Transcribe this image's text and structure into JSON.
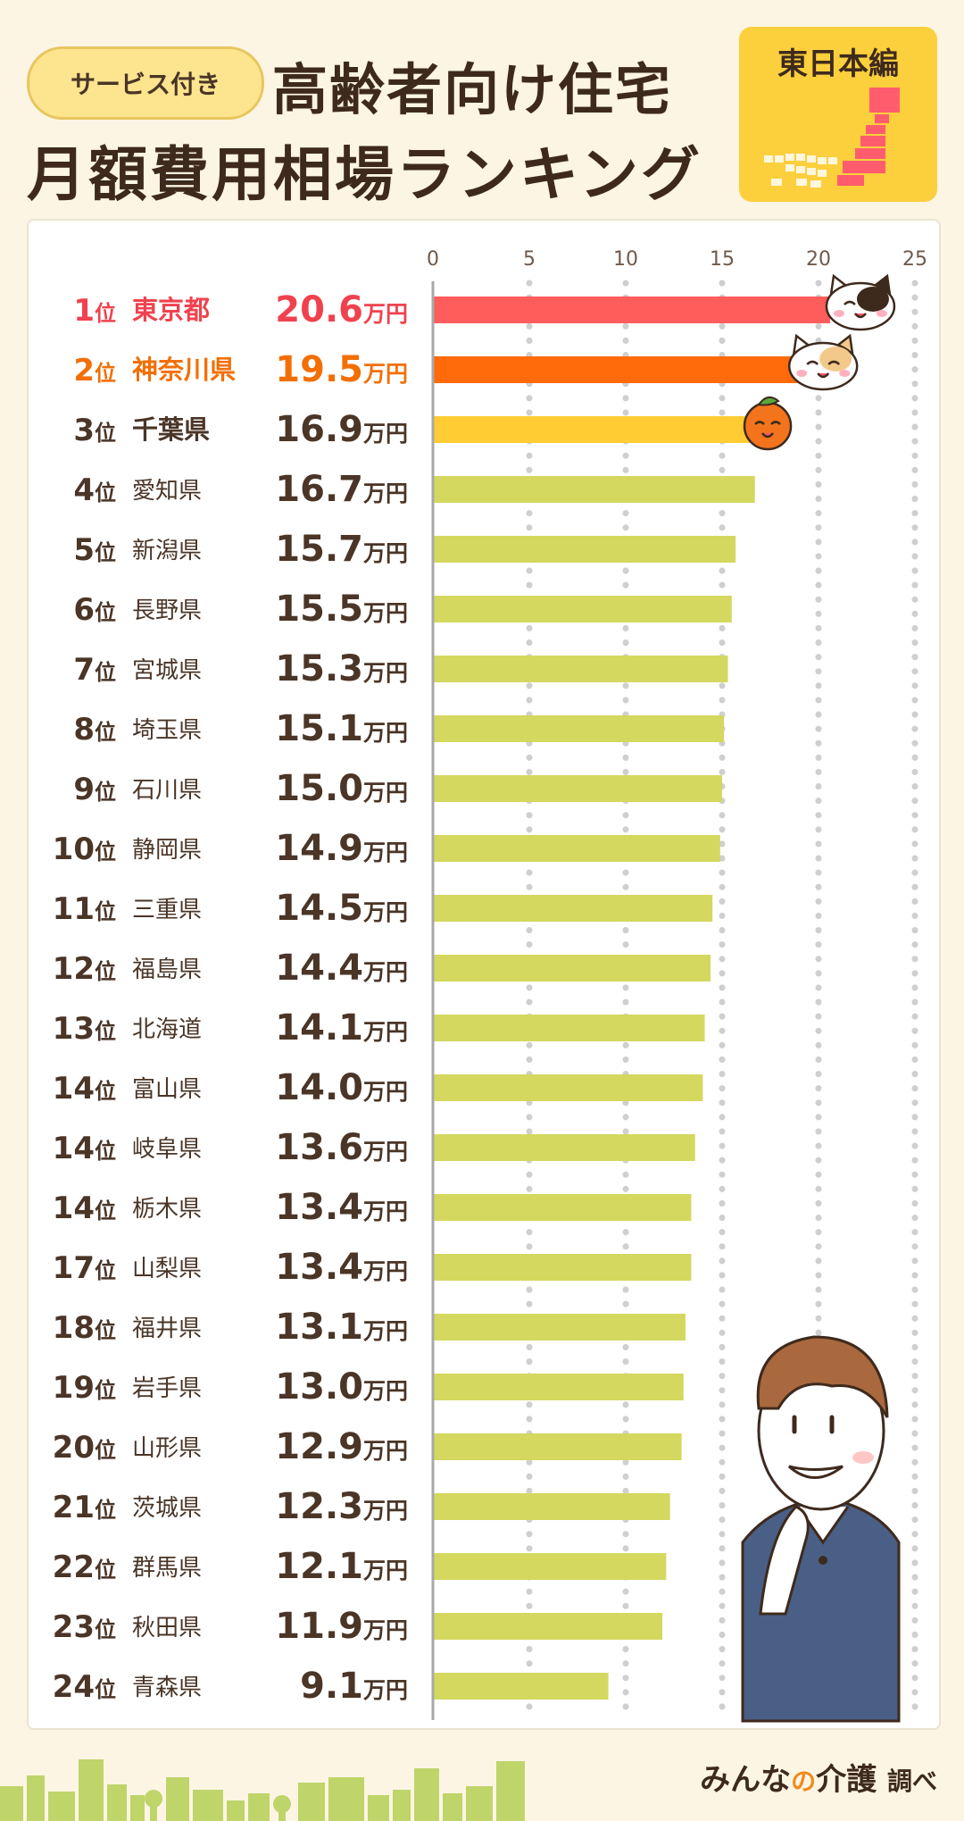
{
  "header": {
    "badge": "サービス付き",
    "title_line1": "高齢者向け住宅",
    "title_line2": "月額費用相場ランキング",
    "region": "東日本編"
  },
  "footer": {
    "brand_main": "みんな",
    "brand_no": "の",
    "brand_care": "介護",
    "brand_suffix": "調べ"
  },
  "colors": {
    "rank1": "#ff5c5c",
    "rank2": "#ff6a0a",
    "rank3": "#ffcc33",
    "rest": "#d4d85e",
    "rank1_text": "#f0424e",
    "rank2_text": "#f26f05",
    "rest_text": "#4a3527"
  },
  "chart_data": {
    "type": "bar",
    "orientation": "horizontal",
    "unit": "万円",
    "rank_suffix": "位",
    "xlim": [
      0,
      25
    ],
    "xticks": [
      0,
      5,
      10,
      15,
      20,
      25
    ],
    "grid": true,
    "rows": [
      {
        "rank": "1",
        "name": "東京都",
        "value": 20.6,
        "label": "20.6"
      },
      {
        "rank": "2",
        "name": "神奈川県",
        "value": 19.5,
        "label": "19.5"
      },
      {
        "rank": "3",
        "name": "千葉県",
        "value": 16.9,
        "label": "16.9"
      },
      {
        "rank": "4",
        "name": "愛知県",
        "value": 16.7,
        "label": "16.7"
      },
      {
        "rank": "5",
        "name": "新潟県",
        "value": 15.7,
        "label": "15.7"
      },
      {
        "rank": "6",
        "name": "長野県",
        "value": 15.5,
        "label": "15.5"
      },
      {
        "rank": "7",
        "name": "宮城県",
        "value": 15.3,
        "label": "15.3"
      },
      {
        "rank": "8",
        "name": "埼玉県",
        "value": 15.1,
        "label": "15.1"
      },
      {
        "rank": "9",
        "name": "石川県",
        "value": 15.0,
        "label": "15.0"
      },
      {
        "rank": "10",
        "name": "静岡県",
        "value": 14.9,
        "label": "14.9"
      },
      {
        "rank": "11",
        "name": "三重県",
        "value": 14.5,
        "label": "14.5"
      },
      {
        "rank": "12",
        "name": "福島県",
        "value": 14.4,
        "label": "14.4"
      },
      {
        "rank": "13",
        "name": "北海道",
        "value": 14.1,
        "label": "14.1"
      },
      {
        "rank": "14",
        "name": "富山県",
        "value": 14.0,
        "label": "14.0"
      },
      {
        "rank": "14",
        "name": "岐阜県",
        "value": 13.6,
        "label": "13.6"
      },
      {
        "rank": "14",
        "name": "栃木県",
        "value": 13.4,
        "label": "13.4"
      },
      {
        "rank": "17",
        "name": "山梨県",
        "value": 13.4,
        "label": "13.4"
      },
      {
        "rank": "18",
        "name": "福井県",
        "value": 13.1,
        "label": "13.1"
      },
      {
        "rank": "19",
        "name": "岩手県",
        "value": 13.0,
        "label": "13.0"
      },
      {
        "rank": "20",
        "name": "山形県",
        "value": 12.9,
        "label": "12.9"
      },
      {
        "rank": "21",
        "name": "茨城県",
        "value": 12.3,
        "label": "12.3"
      },
      {
        "rank": "22",
        "name": "群馬県",
        "value": 12.1,
        "label": "12.1"
      },
      {
        "rank": "23",
        "name": "秋田県",
        "value": 11.9,
        "label": "11.9"
      },
      {
        "rank": "24",
        "name": "青森県",
        "value": 9.1,
        "label": "9.1"
      }
    ]
  }
}
